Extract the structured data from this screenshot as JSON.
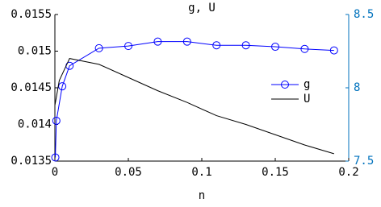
{
  "chart_data": {
    "type": "line",
    "title": "g, U",
    "xlabel": "n",
    "xlim": [
      0,
      0.2
    ],
    "xticks": [
      0,
      0.05,
      0.1,
      0.15,
      0.2
    ],
    "ylim": [
      0.0135,
      0.0155
    ],
    "yticks": [
      0.0135,
      0.014,
      0.0145,
      0.015,
      0.0155
    ],
    "y2lim": [
      7.5,
      8.5
    ],
    "y2ticks": [
      7.5,
      8,
      8.5
    ],
    "y2color": "#0072bd",
    "legend": "right",
    "series": [
      {
        "name": "g",
        "color": "#0000ff",
        "marker": "circle",
        "x": [
          0.0003,
          0.001,
          0.005,
          0.01,
          0.03,
          0.05,
          0.07,
          0.09,
          0.11,
          0.13,
          0.15,
          0.17,
          0.19
        ],
        "values": [
          0.01355,
          0.01405,
          0.01452,
          0.0148,
          0.01504,
          0.01507,
          0.01513,
          0.01513,
          0.01508,
          0.01508,
          0.01506,
          0.01503,
          0.01501
        ]
      },
      {
        "name": "U",
        "color": "#000000",
        "axis": "y2",
        "x": [
          0,
          0.003,
          0.01,
          0.03,
          0.05,
          0.07,
          0.09,
          0.11,
          0.13,
          0.15,
          0.17,
          0.19
        ],
        "values": [
          7.88,
          8.05,
          8.2,
          8.16,
          8.07,
          7.98,
          7.9,
          7.81,
          7.75,
          7.68,
          7.61,
          7.55
        ]
      }
    ]
  }
}
